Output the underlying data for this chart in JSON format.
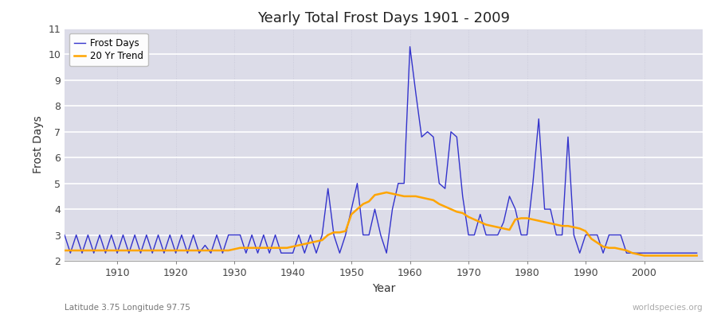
{
  "title": "Yearly Total Frost Days 1901 - 2009",
  "xlabel": "Year",
  "ylabel": "Frost Days",
  "subtitle": "Latitude 3.75 Longitude 97.75",
  "watermark": "worldspecies.org",
  "frost_days_color": "#3333cc",
  "trend_color": "#ffa500",
  "plot_bg_color": "#dcdce8",
  "fig_bg_color": "#ffffff",
  "ylim": [
    2,
    11
  ],
  "yticks": [
    2,
    3,
    4,
    5,
    6,
    7,
    8,
    9,
    10,
    11
  ],
  "xlim": [
    1901,
    2010
  ],
  "xticks": [
    1910,
    1920,
    1930,
    1940,
    1950,
    1960,
    1970,
    1980,
    1990,
    2000
  ],
  "years": [
    1901,
    1902,
    1903,
    1904,
    1905,
    1906,
    1907,
    1908,
    1909,
    1910,
    1911,
    1912,
    1913,
    1914,
    1915,
    1916,
    1917,
    1918,
    1919,
    1920,
    1921,
    1922,
    1923,
    1924,
    1925,
    1926,
    1927,
    1928,
    1929,
    1930,
    1931,
    1932,
    1933,
    1934,
    1935,
    1936,
    1937,
    1938,
    1939,
    1940,
    1941,
    1942,
    1943,
    1944,
    1945,
    1946,
    1947,
    1948,
    1949,
    1950,
    1951,
    1952,
    1953,
    1954,
    1955,
    1956,
    1957,
    1958,
    1959,
    1960,
    1961,
    1962,
    1963,
    1964,
    1965,
    1966,
    1967,
    1968,
    1969,
    1970,
    1971,
    1972,
    1973,
    1974,
    1975,
    1976,
    1977,
    1978,
    1979,
    1980,
    1981,
    1982,
    1983,
    1984,
    1985,
    1986,
    1987,
    1988,
    1989,
    1990,
    1991,
    1992,
    1993,
    1994,
    1995,
    1996,
    1997,
    1998,
    1999,
    2000,
    2001,
    2002,
    2003,
    2004,
    2005,
    2006,
    2007,
    2008,
    2009
  ],
  "frost_days": [
    3.0,
    2.3,
    3.0,
    2.3,
    3.0,
    2.3,
    3.0,
    2.3,
    3.0,
    2.3,
    3.0,
    2.3,
    3.0,
    2.3,
    3.0,
    2.3,
    3.0,
    2.3,
    3.0,
    2.3,
    3.0,
    2.3,
    3.0,
    2.3,
    2.6,
    2.3,
    3.0,
    2.3,
    3.0,
    3.0,
    3.0,
    2.3,
    3.0,
    2.3,
    3.0,
    2.3,
    3.0,
    2.3,
    2.3,
    2.3,
    3.0,
    2.3,
    3.0,
    2.3,
    3.0,
    4.8,
    3.0,
    2.3,
    3.0,
    4.0,
    5.0,
    3.0,
    3.0,
    4.0,
    3.0,
    2.3,
    4.0,
    5.0,
    5.0,
    10.3,
    8.5,
    6.8,
    7.0,
    6.8,
    5.0,
    4.8,
    7.0,
    6.8,
    4.5,
    3.0,
    3.0,
    3.8,
    3.0,
    3.0,
    3.0,
    3.5,
    4.5,
    4.0,
    3.0,
    3.0,
    5.0,
    7.5,
    4.0,
    4.0,
    3.0,
    3.0,
    6.8,
    3.0,
    2.3,
    3.0,
    3.0,
    3.0,
    2.3,
    3.0,
    3.0,
    3.0,
    2.3,
    2.3,
    2.3,
    2.3,
    2.3,
    2.3,
    2.3,
    2.3,
    2.3,
    2.3,
    2.3,
    2.3,
    2.3
  ],
  "trend_values": [
    2.4,
    2.4,
    2.4,
    2.4,
    2.4,
    2.4,
    2.4,
    2.4,
    2.4,
    2.4,
    2.4,
    2.4,
    2.4,
    2.4,
    2.4,
    2.4,
    2.4,
    2.4,
    2.4,
    2.4,
    2.4,
    2.4,
    2.4,
    2.4,
    2.4,
    2.4,
    2.4,
    2.4,
    2.4,
    2.45,
    2.5,
    2.5,
    2.5,
    2.5,
    2.5,
    2.5,
    2.5,
    2.5,
    2.5,
    2.55,
    2.6,
    2.65,
    2.7,
    2.75,
    2.8,
    3.0,
    3.1,
    3.1,
    3.15,
    3.8,
    4.0,
    4.2,
    4.3,
    4.55,
    4.6,
    4.65,
    4.6,
    4.55,
    4.5,
    4.5,
    4.5,
    4.45,
    4.4,
    4.35,
    4.2,
    4.1,
    4.0,
    3.9,
    3.85,
    3.7,
    3.6,
    3.5,
    3.4,
    3.35,
    3.3,
    3.25,
    3.2,
    3.6,
    3.65,
    3.65,
    3.6,
    3.55,
    3.5,
    3.45,
    3.4,
    3.35,
    3.35,
    3.3,
    3.25,
    3.15,
    2.85,
    2.7,
    2.55,
    2.5,
    2.5,
    2.45,
    2.4,
    2.3,
    2.25,
    2.2,
    2.2,
    2.2,
    2.2,
    2.2,
    2.2,
    2.2,
    2.2,
    2.2,
    2.2
  ]
}
